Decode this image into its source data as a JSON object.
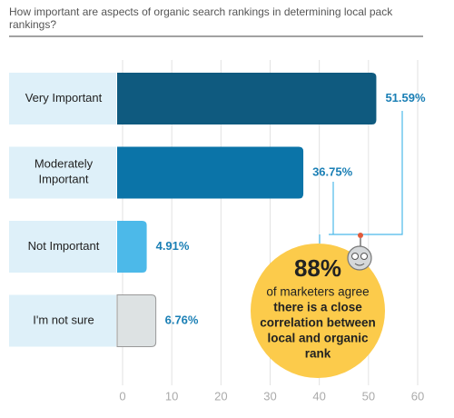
{
  "chart_data": {
    "type": "hbar",
    "title": "How important are aspects of organic search rankings in determining local pack rankings?",
    "categories": [
      "Very Important",
      "Moderately Important",
      "Not Important",
      "I'm not sure"
    ],
    "values": [
      51.59,
      36.75,
      4.91,
      6.76
    ],
    "value_labels": [
      "51.59%",
      "36.75%",
      "4.91%",
      "6.76%"
    ],
    "colors": [
      "#0f5a7f",
      "#0b74a8",
      "#4cb9e9",
      "#dde2e3"
    ],
    "xlim": [
      0,
      60
    ],
    "xticks": [
      0,
      10,
      20,
      30,
      40,
      50,
      60
    ],
    "grid": true,
    "annotation": {
      "headline": "88%",
      "lines": [
        "of marketers agree",
        "there is a close",
        "correlation between",
        "local and organic",
        "rank"
      ]
    }
  }
}
